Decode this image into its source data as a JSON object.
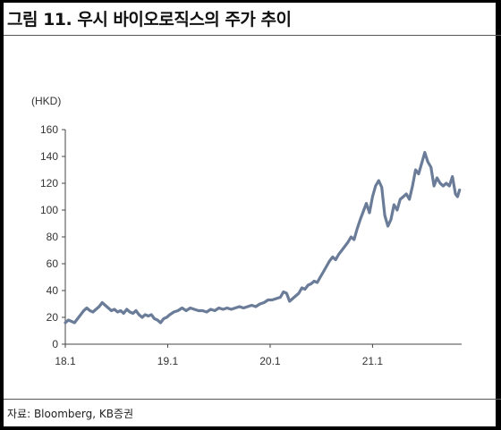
{
  "header": {
    "title": "그림 11. 우시 바이오로직스의 주가 추이"
  },
  "footer": {
    "source": "자료: Bloomberg, KB증권"
  },
  "chart_data": {
    "type": "line",
    "title": "그림 11. 우시 바이오로직스의 주가 추이",
    "ylabel": "(HKD)",
    "xlabel": "",
    "ylim": [
      0,
      160
    ],
    "yticks": [
      0,
      20,
      40,
      60,
      80,
      100,
      120,
      140,
      160
    ],
    "xlim": [
      2018.0,
      2021.87
    ],
    "xticks": [
      {
        "value": 2018.0,
        "label": "18.1"
      },
      {
        "value": 2019.0,
        "label": "19.1"
      },
      {
        "value": 2020.0,
        "label": "20.1"
      },
      {
        "value": 2021.0,
        "label": "21.1"
      }
    ],
    "grid": false,
    "legend": "none",
    "color": "#6a7c98",
    "series": [
      {
        "values": [
          [
            2018.0,
            16
          ],
          [
            2018.03,
            18
          ],
          [
            2018.06,
            17
          ],
          [
            2018.09,
            16
          ],
          [
            2018.12,
            19
          ],
          [
            2018.15,
            22
          ],
          [
            2018.18,
            25
          ],
          [
            2018.21,
            27
          ],
          [
            2018.24,
            25
          ],
          [
            2018.27,
            24
          ],
          [
            2018.3,
            26
          ],
          [
            2018.33,
            28
          ],
          [
            2018.36,
            31
          ],
          [
            2018.39,
            29
          ],
          [
            2018.42,
            27
          ],
          [
            2018.45,
            25
          ],
          [
            2018.48,
            26
          ],
          [
            2018.51,
            24
          ],
          [
            2018.54,
            25
          ],
          [
            2018.57,
            23
          ],
          [
            2018.6,
            26
          ],
          [
            2018.63,
            24
          ],
          [
            2018.66,
            23
          ],
          [
            2018.69,
            25
          ],
          [
            2018.72,
            22
          ],
          [
            2018.75,
            20
          ],
          [
            2018.78,
            22
          ],
          [
            2018.81,
            21
          ],
          [
            2018.84,
            22
          ],
          [
            2018.87,
            19
          ],
          [
            2018.9,
            18
          ],
          [
            2018.93,
            16
          ],
          [
            2018.96,
            19
          ],
          [
            2018.99,
            20
          ],
          [
            2019.02,
            22
          ],
          [
            2019.06,
            24
          ],
          [
            2019.1,
            25
          ],
          [
            2019.14,
            27
          ],
          [
            2019.18,
            25
          ],
          [
            2019.22,
            27
          ],
          [
            2019.26,
            26
          ],
          [
            2019.3,
            25
          ],
          [
            2019.34,
            25
          ],
          [
            2019.38,
            24
          ],
          [
            2019.42,
            26
          ],
          [
            2019.46,
            25
          ],
          [
            2019.5,
            27
          ],
          [
            2019.54,
            26
          ],
          [
            2019.58,
            27
          ],
          [
            2019.62,
            26
          ],
          [
            2019.66,
            27
          ],
          [
            2019.7,
            28
          ],
          [
            2019.74,
            27
          ],
          [
            2019.78,
            28
          ],
          [
            2019.82,
            29
          ],
          [
            2019.86,
            28
          ],
          [
            2019.9,
            30
          ],
          [
            2019.94,
            31
          ],
          [
            2019.98,
            33
          ],
          [
            2020.02,
            33
          ],
          [
            2020.06,
            34
          ],
          [
            2020.1,
            35
          ],
          [
            2020.13,
            39
          ],
          [
            2020.16,
            38
          ],
          [
            2020.19,
            32
          ],
          [
            2020.22,
            34
          ],
          [
            2020.25,
            36
          ],
          [
            2020.28,
            38
          ],
          [
            2020.31,
            42
          ],
          [
            2020.34,
            41
          ],
          [
            2020.37,
            44
          ],
          [
            2020.4,
            45
          ],
          [
            2020.43,
            47
          ],
          [
            2020.46,
            46
          ],
          [
            2020.49,
            50
          ],
          [
            2020.52,
            54
          ],
          [
            2020.55,
            58
          ],
          [
            2020.58,
            62
          ],
          [
            2020.61,
            65
          ],
          [
            2020.64,
            63
          ],
          [
            2020.67,
            67
          ],
          [
            2020.7,
            70
          ],
          [
            2020.73,
            73
          ],
          [
            2020.76,
            76
          ],
          [
            2020.79,
            80
          ],
          [
            2020.82,
            78
          ],
          [
            2020.85,
            86
          ],
          [
            2020.88,
            93
          ],
          [
            2020.91,
            99
          ],
          [
            2020.94,
            105
          ],
          [
            2020.97,
            98
          ],
          [
            2021.0,
            110
          ],
          [
            2021.03,
            118
          ],
          [
            2021.06,
            122
          ],
          [
            2021.09,
            117
          ],
          [
            2021.12,
            96
          ],
          [
            2021.15,
            88
          ],
          [
            2021.18,
            93
          ],
          [
            2021.21,
            104
          ],
          [
            2021.24,
            100
          ],
          [
            2021.27,
            108
          ],
          [
            2021.3,
            110
          ],
          [
            2021.33,
            112
          ],
          [
            2021.36,
            108
          ],
          [
            2021.39,
            118
          ],
          [
            2021.42,
            130
          ],
          [
            2021.45,
            127
          ],
          [
            2021.48,
            135
          ],
          [
            2021.51,
            143
          ],
          [
            2021.54,
            136
          ],
          [
            2021.57,
            132
          ],
          [
            2021.6,
            118
          ],
          [
            2021.63,
            124
          ],
          [
            2021.66,
            120
          ],
          [
            2021.69,
            118
          ],
          [
            2021.72,
            120
          ],
          [
            2021.75,
            118
          ],
          [
            2021.78,
            125
          ],
          [
            2021.81,
            112
          ],
          [
            2021.83,
            110
          ],
          [
            2021.85,
            115
          ]
        ]
      }
    ]
  }
}
